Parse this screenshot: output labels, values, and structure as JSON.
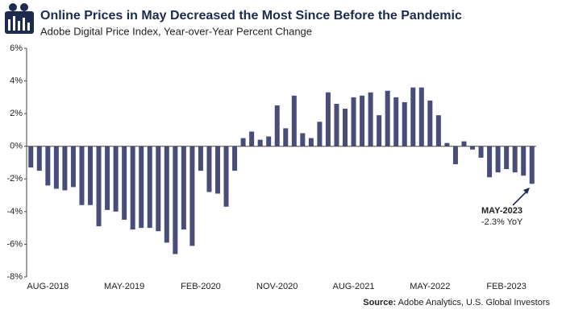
{
  "chart_data": {
    "type": "bar",
    "title": "Online Prices in May Decreased the Most Since Before the Pandemic",
    "subtitle": "Adobe Digital Price Index, Year-over-Year Percent Change",
    "categories": [
      null,
      null,
      "AUG-2018",
      null,
      null,
      null,
      null,
      null,
      null,
      null,
      null,
      "MAY-2019",
      null,
      null,
      null,
      null,
      null,
      null,
      null,
      null,
      "FEB-2020",
      null,
      null,
      null,
      null,
      null,
      null,
      null,
      null,
      "NOV-2020",
      null,
      null,
      null,
      null,
      null,
      null,
      null,
      null,
      "AUG-2021",
      null,
      null,
      null,
      null,
      null,
      null,
      null,
      null,
      "MAY-2022",
      null,
      null,
      null,
      null,
      null,
      null,
      null,
      null,
      "FEB-2023",
      null,
      null,
      null
    ],
    "values": [
      -1.3,
      -1.5,
      -2.4,
      -2.6,
      -2.7,
      -2.5,
      -3.6,
      -3.6,
      -4.9,
      -3.9,
      -4.0,
      -4.5,
      -5.1,
      -5.0,
      -5.0,
      -5.2,
      -5.9,
      -6.6,
      -5.1,
      -6.1,
      -1.5,
      -2.8,
      -2.9,
      -3.7,
      -1.5,
      0.5,
      0.9,
      0.4,
      0.6,
      2.5,
      1.1,
      3.1,
      0.8,
      0.5,
      1.5,
      3.3,
      2.6,
      2.3,
      3.0,
      3.1,
      3.3,
      1.9,
      3.4,
      3.0,
      2.7,
      3.6,
      3.6,
      2.8,
      1.9,
      0.2,
      -1.1,
      0.3,
      -0.2,
      -0.7,
      -1.9,
      -1.6,
      -1.4,
      -1.6,
      -1.8,
      -2.3
    ],
    "color": "#484d7a",
    "ylim": [
      -8,
      6
    ],
    "yticks": [
      {
        "value": -8,
        "label": "-8%"
      },
      {
        "value": -6,
        "label": "-6%"
      },
      {
        "value": -4,
        "label": "-4%"
      },
      {
        "value": -2,
        "label": "-2%"
      },
      {
        "value": 0,
        "label": "0%"
      },
      {
        "value": 2,
        "label": "2%"
      },
      {
        "value": 4,
        "label": "4%"
      },
      {
        "value": 6,
        "label": "6%"
      }
    ],
    "grid": false,
    "annotation": {
      "title": "MAY-2023",
      "text": "-2.3% YoY"
    },
    "source_label": "Source:",
    "source": "Adobe Analytics, U.S. Global Investors"
  }
}
